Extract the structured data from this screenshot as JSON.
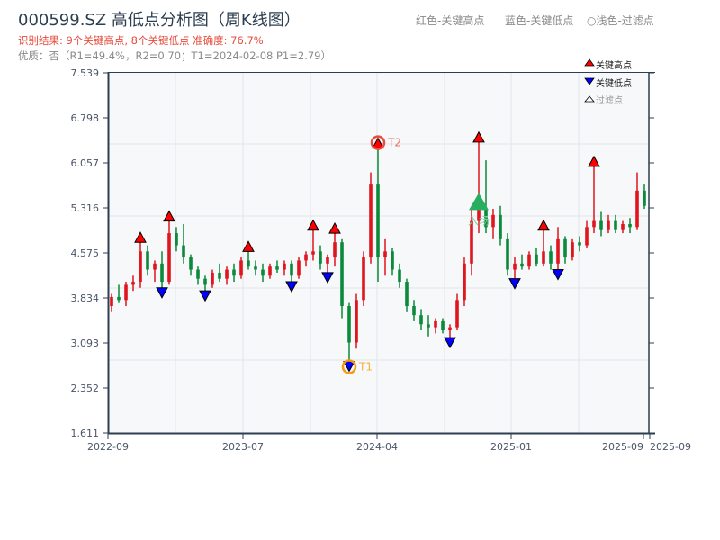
{
  "header": {
    "title": "000599.SZ 高低点分析图（周K线图）",
    "result": "识别结果: 9个关键高点, 8个关键低点  准确度: 76.7%",
    "quality": "优质：否（R1=49.4%，R2=0.70；T1=2024-02-08 P1=2.79）",
    "legend_top": [
      "红色-关键高点",
      "蓝色-关键低点",
      "○浅色-过滤点"
    ]
  },
  "colors": {
    "up": "#e0161e",
    "down": "#0a8a3a",
    "high_marker": "#ff0000",
    "low_marker": "#0000ff",
    "t1": "#f39c12",
    "t2": "#e74c3c",
    "entry": "#27ae60",
    "plot_bg": "#f7f8fa",
    "grid": "#e2e5ea"
  },
  "chart_data": {
    "type": "candlestick",
    "ylim": [
      1.611,
      7.539
    ],
    "yticks": [
      "7.539",
      "6.798",
      "6.057",
      "5.316",
      "4.575",
      "3.834",
      "3.093",
      "2.352",
      "1.611"
    ],
    "xticks": [
      "2022-09",
      "2023-07",
      "2024-04",
      "2025-01",
      "2025-09",
      "2025-09"
    ],
    "grid": true,
    "legend": {
      "placement": "top-right",
      "entries": [
        "关键高点",
        "关键低点",
        "过滤点"
      ]
    },
    "ohlc": [
      [
        3.7,
        3.9,
        3.6,
        3.85
      ],
      [
        3.85,
        4.05,
        3.75,
        3.8
      ],
      [
        3.8,
        4.1,
        3.7,
        4.05
      ],
      [
        4.05,
        4.2,
        3.95,
        4.1
      ],
      [
        4.1,
        4.75,
        4.0,
        4.6
      ],
      [
        4.6,
        4.7,
        4.2,
        4.3
      ],
      [
        4.3,
        4.45,
        4.1,
        4.4
      ],
      [
        4.4,
        4.6,
        4.0,
        4.1
      ],
      [
        4.1,
        5.1,
        4.05,
        4.9
      ],
      [
        4.9,
        5.0,
        4.6,
        4.7
      ],
      [
        4.7,
        5.05,
        4.4,
        4.5
      ],
      [
        4.5,
        4.55,
        4.2,
        4.3
      ],
      [
        4.3,
        4.35,
        4.05,
        4.15
      ],
      [
        4.15,
        4.2,
        3.95,
        4.05
      ],
      [
        4.05,
        4.3,
        4.0,
        4.25
      ],
      [
        4.25,
        4.4,
        4.1,
        4.15
      ],
      [
        4.15,
        4.35,
        4.05,
        4.3
      ],
      [
        4.3,
        4.4,
        4.1,
        4.2
      ],
      [
        4.2,
        4.5,
        4.15,
        4.45
      ],
      [
        4.45,
        4.6,
        4.3,
        4.35
      ],
      [
        4.35,
        4.45,
        4.2,
        4.3
      ],
      [
        4.3,
        4.4,
        4.1,
        4.2
      ],
      [
        4.2,
        4.4,
        4.15,
        4.35
      ],
      [
        4.35,
        4.45,
        4.25,
        4.3
      ],
      [
        4.3,
        4.45,
        4.2,
        4.4
      ],
      [
        4.4,
        4.45,
        4.1,
        4.2
      ],
      [
        4.2,
        4.5,
        4.15,
        4.45
      ],
      [
        4.45,
        4.6,
        4.35,
        4.55
      ],
      [
        4.55,
        4.95,
        4.45,
        4.6
      ],
      [
        4.6,
        4.7,
        4.3,
        4.4
      ],
      [
        4.4,
        4.55,
        4.25,
        4.5
      ],
      [
        4.5,
        4.9,
        4.35,
        4.75
      ],
      [
        4.75,
        4.8,
        3.5,
        3.7
      ],
      [
        3.7,
        3.75,
        2.79,
        3.1
      ],
      [
        3.1,
        3.9,
        3.0,
        3.8
      ],
      [
        3.8,
        4.6,
        3.7,
        4.5
      ],
      [
        4.5,
        5.9,
        4.4,
        5.7
      ],
      [
        5.7,
        6.3,
        4.1,
        4.5
      ],
      [
        4.5,
        4.8,
        4.2,
        4.6
      ],
      [
        4.6,
        4.65,
        4.2,
        4.3
      ],
      [
        4.3,
        4.4,
        4.0,
        4.1
      ],
      [
        4.1,
        4.15,
        3.6,
        3.7
      ],
      [
        3.7,
        3.8,
        3.45,
        3.55
      ],
      [
        3.55,
        3.65,
        3.3,
        3.4
      ],
      [
        3.4,
        3.55,
        3.2,
        3.35
      ],
      [
        3.35,
        3.5,
        3.25,
        3.45
      ],
      [
        3.45,
        3.5,
        3.25,
        3.3
      ],
      [
        3.3,
        3.4,
        3.18,
        3.35
      ],
      [
        3.35,
        3.9,
        3.3,
        3.8
      ],
      [
        3.8,
        4.5,
        3.7,
        4.4
      ],
      [
        4.4,
        5.3,
        4.2,
        5.1
      ],
      [
        5.1,
        6.4,
        4.9,
        5.3
      ],
      [
        5.3,
        6.1,
        4.9,
        5.0
      ],
      [
        5.0,
        5.3,
        4.8,
        5.2
      ],
      [
        5.2,
        5.35,
        4.7,
        4.8
      ],
      [
        4.8,
        4.9,
        4.2,
        4.3
      ],
      [
        4.3,
        4.5,
        4.15,
        4.4
      ],
      [
        4.4,
        4.55,
        4.3,
        4.35
      ],
      [
        4.35,
        4.6,
        4.3,
        4.55
      ],
      [
        4.55,
        4.65,
        4.35,
        4.4
      ],
      [
        4.4,
        4.95,
        4.35,
        4.6
      ],
      [
        4.6,
        4.7,
        4.3,
        4.4
      ],
      [
        4.4,
        5.0,
        4.3,
        4.8
      ],
      [
        4.8,
        4.85,
        4.4,
        4.5
      ],
      [
        4.5,
        4.8,
        4.45,
        4.75
      ],
      [
        4.75,
        4.85,
        4.6,
        4.7
      ],
      [
        4.7,
        5.1,
        4.65,
        5.0
      ],
      [
        5.0,
        6.0,
        4.9,
        5.1
      ],
      [
        5.1,
        5.25,
        4.85,
        4.95
      ],
      [
        4.95,
        5.2,
        4.9,
        5.1
      ],
      [
        5.1,
        5.2,
        4.9,
        4.95
      ],
      [
        4.95,
        5.1,
        4.9,
        5.05
      ],
      [
        5.05,
        5.15,
        4.9,
        5.0
      ],
      [
        5.0,
        5.9,
        4.95,
        5.6
      ],
      [
        5.6,
        5.7,
        5.3,
        5.35
      ]
    ],
    "key_highs": [
      {
        "bar": 4,
        "price": 4.75
      },
      {
        "bar": 8,
        "price": 5.1
      },
      {
        "bar": 19,
        "price": 4.6
      },
      {
        "bar": 28,
        "price": 4.95
      },
      {
        "bar": 31,
        "price": 4.9
      },
      {
        "bar": 37,
        "price": 6.3
      },
      {
        "bar": 51,
        "price": 6.4
      },
      {
        "bar": 60,
        "price": 4.95
      },
      {
        "bar": 67,
        "price": 6.0
      }
    ],
    "key_lows": [
      {
        "bar": 7,
        "price": 4.0
      },
      {
        "bar": 13,
        "price": 3.95
      },
      {
        "bar": 25,
        "price": 4.1
      },
      {
        "bar": 30,
        "price": 4.25
      },
      {
        "bar": 33,
        "price": 2.79
      },
      {
        "bar": 47,
        "price": 3.18
      },
      {
        "bar": 56,
        "price": 4.15
      },
      {
        "bar": 62,
        "price": 4.3
      }
    ],
    "annotations": [
      {
        "label": "T1",
        "bar": 33,
        "price": 2.79,
        "kind": "low"
      },
      {
        "label": "T2",
        "bar": 37,
        "price": 6.3,
        "kind": "high"
      },
      {
        "label": "入场",
        "bar": 51,
        "price": 5.4,
        "kind": "entry"
      }
    ]
  }
}
